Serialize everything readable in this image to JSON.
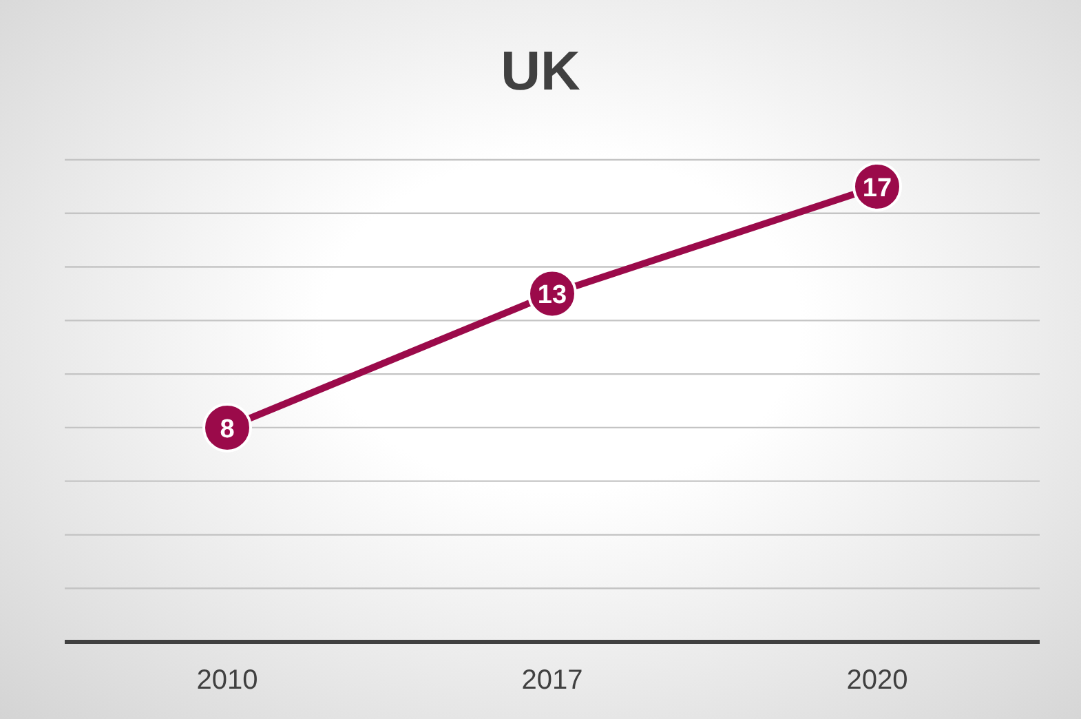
{
  "chart_data": {
    "type": "line",
    "title": "UK",
    "categories": [
      "2010",
      "2017",
      "2020"
    ],
    "series": [
      {
        "color": "#9b0a4a",
        "values": [
          8,
          13,
          17
        ]
      }
    ],
    "ylim": [
      0,
      18
    ],
    "yticks": [
      {
        "value": 0,
        "label": null
      },
      {
        "value": 2,
        "label": null
      },
      {
        "value": 4,
        "label": null
      },
      {
        "value": 6,
        "label": null
      },
      {
        "value": 8,
        "label": null
      },
      {
        "value": 10,
        "label": null
      },
      {
        "value": 12,
        "label": null
      },
      {
        "value": 14,
        "label": null
      },
      {
        "value": 16,
        "label": null
      },
      {
        "value": 18,
        "label": null
      }
    ],
    "grid": "y",
    "tick_labels": "x",
    "marker": "circle",
    "line_style": "solid",
    "data_labels": true,
    "legend": false
  }
}
